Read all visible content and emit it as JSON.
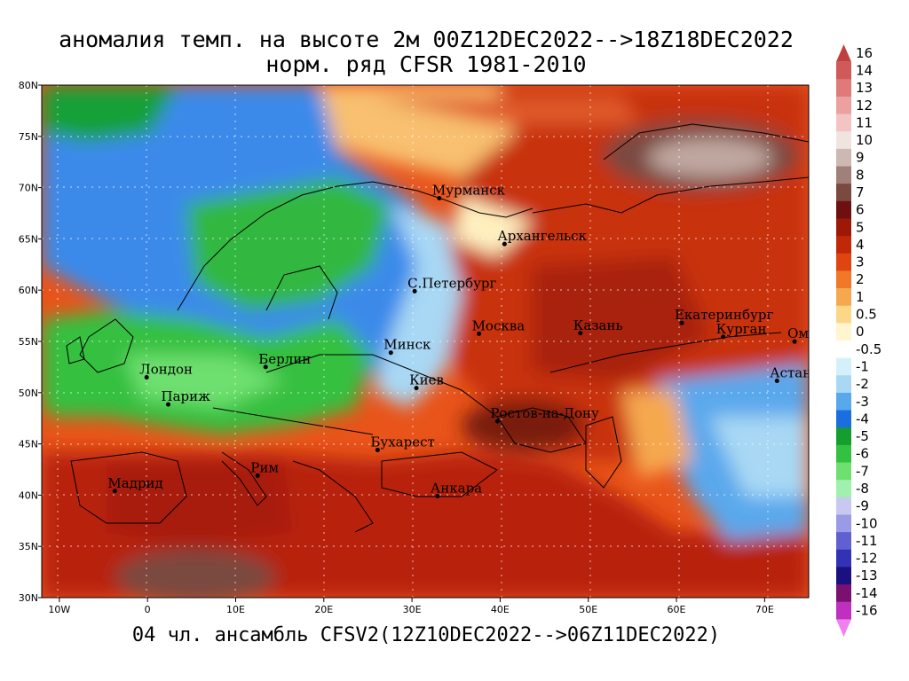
{
  "title": {
    "line1": "аномалия темп. на высоте 2м 00Z12DEC2022-->18Z18DEC2022",
    "line2": "норм. ряд CFSR 1981-2010"
  },
  "footer": "04 чл. ансамбль CFSV2(12Z10DEC2022-->06Z11DEC2022)",
  "axes": {
    "lat_labels": [
      "80N",
      "75N",
      "70N",
      "65N",
      "60N",
      "55N",
      "50N",
      "45N",
      "40N",
      "35N",
      "30N"
    ],
    "lon_labels": [
      "10W",
      "0",
      "10E",
      "20E",
      "30E",
      "40E",
      "50E",
      "60E",
      "70E"
    ]
  },
  "cities": [
    {
      "name": "Мурманск",
      "lon": 33.1,
      "lat": 68.97
    },
    {
      "name": "Архангельск",
      "lon": 40.5,
      "lat": 64.5
    },
    {
      "name": "С.Петербург",
      "lon": 30.3,
      "lat": 59.9
    },
    {
      "name": "Москва",
      "lon": 37.6,
      "lat": 55.75
    },
    {
      "name": "Казань",
      "lon": 49.1,
      "lat": 55.8
    },
    {
      "name": "Екатеринбург",
      "lon": 60.6,
      "lat": 56.8
    },
    {
      "name": "Курган",
      "lon": 65.3,
      "lat": 55.45
    },
    {
      "name": "Омск",
      "lon": 73.4,
      "lat": 54.98
    },
    {
      "name": "Астана",
      "lon": 71.4,
      "lat": 51.15
    },
    {
      "name": "Минск",
      "lon": 27.6,
      "lat": 53.9
    },
    {
      "name": "Берлин",
      "lon": 13.4,
      "lat": 52.5
    },
    {
      "name": "Лондон",
      "lon": -0.1,
      "lat": 51.5
    },
    {
      "name": "Париж",
      "lon": 2.35,
      "lat": 48.85
    },
    {
      "name": "Киев",
      "lon": 30.5,
      "lat": 50.45
    },
    {
      "name": "Ростов-на-Дону",
      "lon": 39.7,
      "lat": 47.2
    },
    {
      "name": "Бухарест",
      "lon": 26.1,
      "lat": 44.4
    },
    {
      "name": "Рим",
      "lon": 12.5,
      "lat": 41.9
    },
    {
      "name": "Мадрид",
      "lon": -3.7,
      "lat": 40.4
    },
    {
      "name": "Анкара",
      "lon": 32.9,
      "lat": 39.9
    }
  ],
  "colorbar": {
    "labels": [
      "16",
      "14",
      "13",
      "12",
      "11",
      "10",
      "9",
      "8",
      "7",
      "6",
      "5",
      "4",
      "3",
      "2",
      "1",
      "0.5",
      "0",
      "-0.5",
      "-1",
      "-2",
      "-3",
      "-4",
      "-5",
      "-6",
      "-7",
      "-8",
      "-9",
      "-10",
      "-11",
      "-12",
      "-13",
      "-14",
      "-16"
    ],
    "colors": [
      "#c04040",
      "#d05a5a",
      "#e07a7a",
      "#eda0a0",
      "#f4c4c4",
      "#f0e4e0",
      "#cdb8b4",
      "#a08078",
      "#7a4a40",
      "#6e1010",
      "#9e1808",
      "#c02808",
      "#e04410",
      "#f07828",
      "#f6a850",
      "#fad888",
      "#fff6d0",
      "#ffffff",
      "#d4f0fa",
      "#a8d8f4",
      "#5aa8ec",
      "#1a6ee0",
      "#149e30",
      "#34c040",
      "#6ee070",
      "#a0f0b0",
      "#c8c8f0",
      "#9a9ae6",
      "#6060d0",
      "#3232b4",
      "#1a1080",
      "#7a1070",
      "#c030c0",
      "#f080f0"
    ]
  },
  "legend_colors": {
    "cold": "#1a6ee0",
    "warm": "#c02808",
    "extreme": "#6e1010"
  }
}
